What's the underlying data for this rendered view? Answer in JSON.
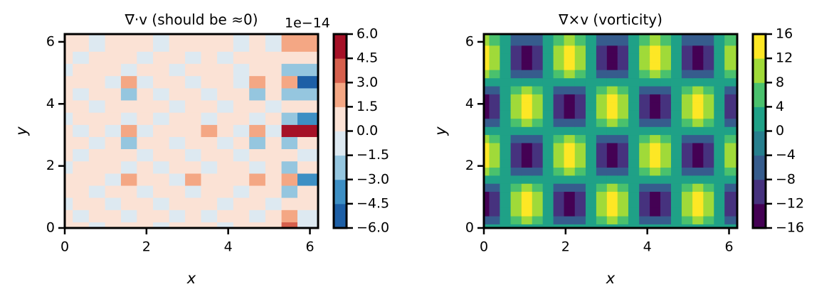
{
  "chart_data": [
    {
      "type": "contour",
      "title": "∇·v (should be ≈0)",
      "xlabel": "x",
      "ylabel": "y",
      "xlim": [
        0,
        6.2
      ],
      "ylim": [
        0,
        6.25
      ],
      "xticks": [
        0,
        2,
        4,
        6
      ],
      "yticks": [
        0,
        2,
        4,
        6
      ],
      "x": [
        0,
        0.39,
        0.79,
        1.18,
        1.57,
        1.96,
        2.36,
        2.75,
        3.14,
        3.53,
        3.93,
        4.32,
        4.71,
        5.11,
        5.5,
        5.89
      ],
      "y": [
        0,
        0.39,
        0.79,
        1.18,
        1.57,
        1.96,
        2.36,
        2.75,
        3.14,
        3.53,
        3.93,
        4.32,
        4.71,
        5.11,
        5.5,
        5.89
      ],
      "z": [
        [
          0.6,
          0.6,
          -0.6,
          0.6,
          0.6,
          0.6,
          -0.6,
          0.6,
          0.6,
          0.6,
          -0.6,
          0.6,
          0.6,
          0.6,
          3.5,
          -0.6
        ],
        [
          0.6,
          -0.6,
          0.6,
          0.6,
          -0.6,
          0.6,
          0.6,
          -0.6,
          0.6,
          -0.6,
          0.6,
          0.6,
          -0.6,
          0.6,
          1.8,
          -0.6
        ],
        [
          -0.6,
          0.6,
          0.6,
          -0.6,
          0.6,
          0.6,
          -0.6,
          0.6,
          0.6,
          0.6,
          -0.6,
          0.6,
          0.6,
          -0.6,
          0.6,
          0.6
        ],
        [
          0.6,
          0.6,
          -0.6,
          0.6,
          0.6,
          -0.6,
          0.6,
          0.6,
          -0.6,
          0.6,
          0.6,
          -0.6,
          0.6,
          0.6,
          -2.0,
          0.6
        ],
        [
          0.6,
          0.6,
          0.6,
          -0.6,
          1.8,
          0.6,
          0.6,
          -0.6,
          1.6,
          0.6,
          0.6,
          0.6,
          2.5,
          0.6,
          1.8,
          -3.5
        ],
        [
          -0.6,
          0.6,
          0.6,
          0.6,
          -0.6,
          0.6,
          -0.6,
          0.6,
          0.6,
          -0.6,
          0.6,
          0.6,
          -0.6,
          0.6,
          -1.8,
          0.6
        ],
        [
          0.6,
          -0.6,
          0.6,
          0.6,
          0.6,
          -0.6,
          0.6,
          0.6,
          -0.6,
          0.6,
          0.6,
          -0.6,
          0.6,
          0.6,
          0.6,
          -0.6
        ],
        [
          0.6,
          0.6,
          -0.6,
          0.6,
          -2.0,
          0.6,
          0.6,
          -0.6,
          0.6,
          0.6,
          -0.6,
          0.6,
          -1.8,
          0.6,
          -2.0,
          0.6
        ],
        [
          0.6,
          -0.6,
          0.6,
          -0.6,
          2.0,
          -0.6,
          0.6,
          0.6,
          0.6,
          2.0,
          0.6,
          -0.6,
          2.2,
          -0.6,
          4.8,
          5.2
        ],
        [
          -0.6,
          0.6,
          0.6,
          0.6,
          -0.6,
          0.6,
          -0.6,
          0.6,
          0.6,
          -0.6,
          0.6,
          0.6,
          -0.6,
          0.6,
          -2.0,
          -3.2
        ],
        [
          0.6,
          0.6,
          -0.6,
          0.6,
          0.6,
          0.6,
          0.6,
          -0.6,
          0.6,
          0.6,
          -0.6,
          0.6,
          0.6,
          -0.6,
          0.6,
          0.6
        ],
        [
          0.6,
          -0.6,
          0.6,
          0.6,
          -2.0,
          0.6,
          -0.6,
          0.6,
          0.6,
          -0.6,
          0.6,
          0.6,
          -1.8,
          0.6,
          -2.0,
          -1.8
        ],
        [
          0.6,
          0.6,
          0.6,
          -0.6,
          2.6,
          -0.6,
          0.6,
          0.6,
          -0.6,
          0.6,
          0.6,
          -0.6,
          2.0,
          0.6,
          2.0,
          -4.8
        ],
        [
          -0.6,
          0.6,
          0.6,
          0.6,
          -0.6,
          0.6,
          0.6,
          -0.6,
          0.6,
          0.6,
          0.6,
          -0.6,
          0.6,
          0.6,
          -1.8,
          -2.0
        ],
        [
          0.6,
          -0.6,
          0.6,
          0.6,
          0.6,
          -0.6,
          0.6,
          0.6,
          -0.6,
          0.6,
          -0.6,
          0.6,
          0.6,
          0.6,
          0.6,
          0.6
        ],
        [
          0.6,
          0.6,
          -0.6,
          0.6,
          0.6,
          0.6,
          -0.6,
          0.6,
          0.6,
          0.6,
          0.6,
          -0.6,
          0.6,
          -0.6,
          2.0,
          2.2
        ]
      ],
      "colorbar": {
        "offset_text": "1e−14",
        "ticks": [
          {
            "value": -6,
            "label": "−6.0"
          },
          {
            "value": -4.5,
            "label": "−4.5"
          },
          {
            "value": -3,
            "label": "−3.0"
          },
          {
            "value": -1.5,
            "label": "−1.5"
          },
          {
            "value": 0,
            "label": "0.0"
          },
          {
            "value": 1.5,
            "label": "1.5"
          },
          {
            "value": 3,
            "label": "3.0"
          },
          {
            "value": 4.5,
            "label": "4.5"
          },
          {
            "value": 6,
            "label": "6.0"
          }
        ],
        "colors": [
          "#1d5fa6",
          "#3d8fc4",
          "#95c6df",
          "#dde9f1",
          "#fbe2d5",
          "#f4a784",
          "#d6604d",
          "#a51127"
        ]
      }
    },
    {
      "type": "contour",
      "title": "∇×v (vorticity)",
      "xlabel": "x",
      "ylabel": "y",
      "xlim": [
        0,
        6.2
      ],
      "ylim": [
        0,
        6.25
      ],
      "xticks": [
        0,
        2,
        4,
        6
      ],
      "yticks": [
        0,
        2,
        4,
        6
      ],
      "x": [
        0,
        0.26,
        0.52,
        0.79,
        1.05,
        1.31,
        1.57,
        1.83,
        2.09,
        2.36,
        2.62,
        2.88,
        3.14,
        3.4,
        3.67,
        3.93,
        4.19,
        4.45,
        4.71,
        4.97,
        5.24,
        5.5,
        5.76,
        6.02
      ],
      "y": [
        0,
        0.26,
        0.52,
        0.79,
        1.05,
        1.31,
        1.57,
        1.83,
        2.09,
        2.36,
        2.62,
        2.88,
        3.14,
        3.4,
        3.67,
        3.93,
        4.19,
        4.45,
        4.71,
        4.97,
        5.24,
        5.5,
        5.76,
        6.02
      ],
      "z": [
        [
          0,
          0,
          0,
          0,
          0,
          0,
          0,
          0,
          0,
          0,
          0,
          0,
          0,
          0,
          0,
          0,
          0,
          0,
          0,
          0,
          0,
          0,
          0,
          0
        ],
        [
          -8,
          -5.7,
          0,
          5.7,
          8,
          5.7,
          0,
          -5.7,
          -8,
          -5.7,
          0,
          5.7,
          8,
          5.7,
          0,
          -5.7,
          -8,
          -5.7,
          0,
          5.7,
          8,
          5.7,
          0,
          -5.7
        ],
        [
          -13.9,
          -9.8,
          0,
          9.8,
          13.9,
          9.8,
          0,
          -9.8,
          -13.9,
          -9.8,
          0,
          9.8,
          13.9,
          9.8,
          0,
          -9.8,
          -13.9,
          -9.8,
          0,
          9.8,
          13.9,
          9.8,
          0,
          -9.8
        ],
        [
          -16,
          -11.3,
          0,
          11.3,
          16,
          11.3,
          0,
          -11.3,
          -16,
          -11.3,
          0,
          11.3,
          16,
          11.3,
          0,
          -11.3,
          -16,
          -11.3,
          0,
          11.3,
          16,
          11.3,
          0,
          -11.3
        ],
        [
          -13.9,
          -9.8,
          0,
          9.8,
          13.9,
          9.8,
          0,
          -9.8,
          -13.9,
          -9.8,
          0,
          9.8,
          13.9,
          9.8,
          0,
          -9.8,
          -13.9,
          -9.8,
          0,
          9.8,
          13.9,
          9.8,
          0,
          -9.8
        ],
        [
          -8,
          -5.7,
          0,
          5.7,
          8,
          5.7,
          0,
          -5.7,
          -8,
          -5.7,
          0,
          5.7,
          8,
          5.7,
          0,
          -5.7,
          -8,
          -5.7,
          0,
          5.7,
          8,
          5.7,
          0,
          -5.7
        ],
        [
          0,
          0,
          0,
          0,
          0,
          0,
          0,
          0,
          0,
          0,
          0,
          0,
          0,
          0,
          0,
          0,
          0,
          0,
          0,
          0,
          0,
          0,
          0,
          0
        ],
        [
          8,
          5.7,
          0,
          -5.7,
          -8,
          -5.7,
          0,
          5.7,
          8,
          5.7,
          0,
          -5.7,
          -8,
          -5.7,
          0,
          5.7,
          8,
          5.7,
          0,
          -5.7,
          -8,
          -5.7,
          0,
          5.7
        ],
        [
          13.9,
          9.8,
          0,
          -9.8,
          -13.9,
          -9.8,
          0,
          9.8,
          13.9,
          9.8,
          0,
          -9.8,
          -13.9,
          -9.8,
          0,
          9.8,
          13.9,
          9.8,
          0,
          -9.8,
          -13.9,
          -9.8,
          0,
          9.8
        ],
        [
          16,
          11.3,
          0,
          -11.3,
          -16,
          -11.3,
          0,
          11.3,
          16,
          11.3,
          0,
          -11.3,
          -16,
          -11.3,
          0,
          11.3,
          16,
          11.3,
          0,
          -11.3,
          -16,
          -11.3,
          0,
          11.3
        ],
        [
          13.9,
          9.8,
          0,
          -9.8,
          -13.9,
          -9.8,
          0,
          9.8,
          13.9,
          9.8,
          0,
          -9.8,
          -13.9,
          -9.8,
          0,
          9.8,
          13.9,
          9.8,
          0,
          -9.8,
          -13.9,
          -9.8,
          0,
          9.8
        ],
        [
          8,
          5.7,
          0,
          -5.7,
          -8,
          -5.7,
          0,
          5.7,
          8,
          5.7,
          0,
          -5.7,
          -8,
          -5.7,
          0,
          5.7,
          8,
          5.7,
          0,
          -5.7,
          -8,
          -5.7,
          0,
          5.7
        ],
        [
          0,
          0,
          0,
          0,
          0,
          0,
          0,
          0,
          0,
          0,
          0,
          0,
          0,
          0,
          0,
          0,
          0,
          0,
          0,
          0,
          0,
          0,
          0,
          0
        ],
        [
          -8,
          -5.7,
          0,
          5.7,
          8,
          5.7,
          0,
          -5.7,
          -8,
          -5.7,
          0,
          5.7,
          8,
          5.7,
          0,
          -5.7,
          -8,
          -5.7,
          0,
          5.7,
          8,
          5.7,
          0,
          -5.7
        ],
        [
          -13.9,
          -9.8,
          0,
          9.8,
          13.9,
          9.8,
          0,
          -9.8,
          -13.9,
          -9.8,
          0,
          9.8,
          13.9,
          9.8,
          0,
          -9.8,
          -13.9,
          -9.8,
          0,
          9.8,
          13.9,
          9.8,
          0,
          -9.8
        ],
        [
          -16,
          -11.3,
          0,
          11.3,
          16,
          11.3,
          0,
          -11.3,
          -16,
          -11.3,
          0,
          11.3,
          16,
          11.3,
          0,
          -11.3,
          -16,
          -11.3,
          0,
          11.3,
          16,
          11.3,
          0,
          -11.3
        ],
        [
          -13.9,
          -9.8,
          0,
          9.8,
          13.9,
          9.8,
          0,
          -9.8,
          -13.9,
          -9.8,
          0,
          9.8,
          13.9,
          9.8,
          0,
          -9.8,
          -13.9,
          -9.8,
          0,
          9.8,
          13.9,
          9.8,
          0,
          -9.8
        ],
        [
          -8,
          -5.7,
          0,
          5.7,
          8,
          5.7,
          0,
          -5.7,
          -8,
          -5.7,
          0,
          5.7,
          8,
          5.7,
          0,
          -5.7,
          -8,
          -5.7,
          0,
          5.7,
          8,
          5.7,
          0,
          -5.7
        ],
        [
          0,
          0,
          0,
          0,
          0,
          0,
          0,
          0,
          0,
          0,
          0,
          0,
          0,
          0,
          0,
          0,
          0,
          0,
          0,
          0,
          0,
          0,
          0,
          0
        ],
        [
          8,
          5.7,
          0,
          -5.7,
          -8,
          -5.7,
          0,
          5.7,
          8,
          5.7,
          0,
          -5.7,
          -8,
          -5.7,
          0,
          5.7,
          8,
          5.7,
          0,
          -5.7,
          -8,
          -5.7,
          0,
          5.7
        ],
        [
          13.9,
          9.8,
          0,
          -9.8,
          -13.9,
          -9.8,
          0,
          9.8,
          13.9,
          9.8,
          0,
          -9.8,
          -13.9,
          -9.8,
          0,
          9.8,
          13.9,
          9.8,
          0,
          -9.8,
          -13.9,
          -9.8,
          0,
          9.8
        ],
        [
          16,
          11.3,
          0,
          -11.3,
          -16,
          -11.3,
          0,
          11.3,
          16,
          11.3,
          0,
          -11.3,
          -16,
          -11.3,
          0,
          11.3,
          16,
          11.3,
          0,
          -11.3,
          -16,
          -11.3,
          0,
          11.3
        ],
        [
          13.9,
          9.8,
          0,
          -9.8,
          -13.9,
          -9.8,
          0,
          9.8,
          13.9,
          9.8,
          0,
          -9.8,
          -13.9,
          -9.8,
          0,
          9.8,
          13.9,
          9.8,
          0,
          -9.8,
          -13.9,
          -9.8,
          0,
          9.8
        ],
        [
          8,
          5.7,
          0,
          -5.7,
          -8,
          -5.7,
          0,
          5.7,
          8,
          5.7,
          0,
          -5.7,
          -8,
          -5.7,
          0,
          5.7,
          8,
          5.7,
          0,
          -5.7,
          -8,
          -5.7,
          0,
          5.7
        ]
      ],
      "colorbar": {
        "ticks": [
          {
            "value": -16,
            "label": "−16"
          },
          {
            "value": -12,
            "label": "−12"
          },
          {
            "value": -8,
            "label": "−8"
          },
          {
            "value": -4,
            "label": "−4"
          },
          0,
          4,
          8,
          12,
          16
        ],
        "colors": [
          "#440154",
          "#46327e",
          "#365c8d",
          "#277f8e",
          "#1fa187",
          "#4ac16d",
          "#a0da39",
          "#fde725"
        ]
      }
    }
  ]
}
